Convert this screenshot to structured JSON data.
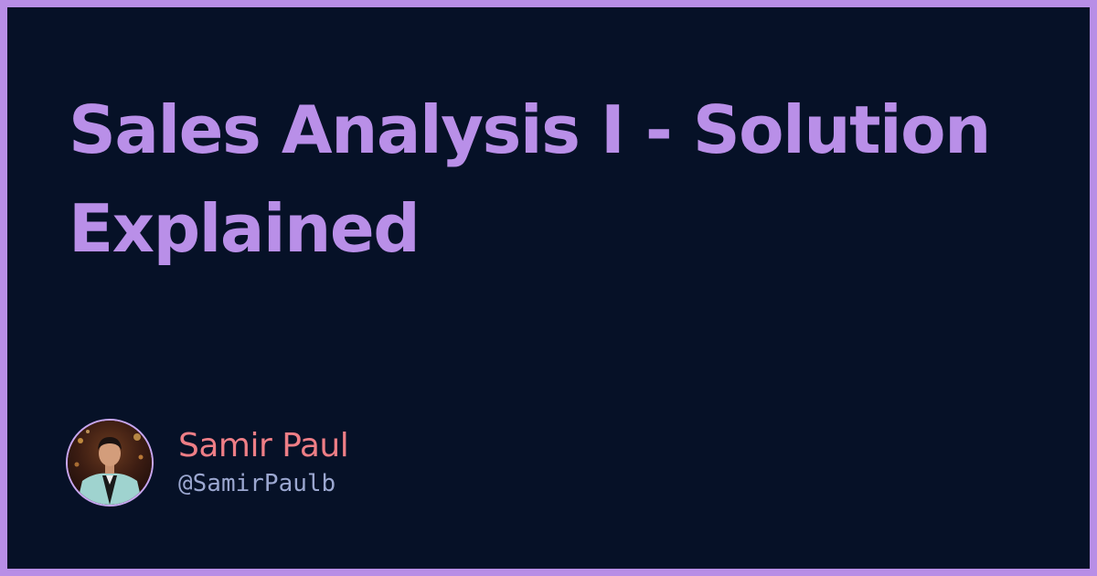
{
  "title": "Sales Analysis I - Solution Explained",
  "author": {
    "name": "Samir Paul",
    "handle": "@SamirPaulb"
  },
  "colors": {
    "frame": "#b88ee6",
    "background": "#061127",
    "title": "#b98fe8",
    "author_name": "#ee7e86",
    "author_handle": "#9ba7d0"
  }
}
